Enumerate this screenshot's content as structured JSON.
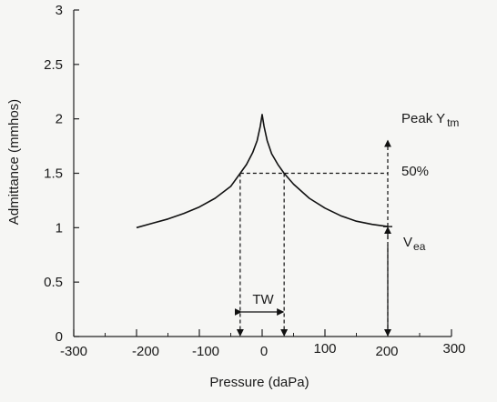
{
  "chart_data": {
    "type": "line",
    "title": "",
    "xlabel": "Pressure (daPa)",
    "ylabel": "Admittance (mmhos)",
    "xlim": [
      -300,
      200
    ],
    "ylim": [
      0,
      3
    ],
    "x_tick_labels": [
      {
        "value": -300,
        "label": "-300"
      },
      {
        "value": -200,
        "label": "-200"
      },
      {
        "value": -100,
        "label": "-100"
      },
      {
        "value": 0,
        "label": "0"
      },
      {
        "value": 100,
        "label": "100"
      },
      {
        "value": 200,
        "label": "200"
      },
      {
        "value": 300,
        "label": "300"
      }
    ],
    "y_ticks": [
      0,
      0.5,
      1,
      1.5,
      2,
      2.5,
      3
    ],
    "y_tick_labels": [
      "0",
      "0.5",
      "1",
      "1.5",
      "2",
      "2.5",
      "3"
    ],
    "grid": false,
    "series": [
      {
        "x": [
          -200,
          -175,
          -150,
          -125,
          -100,
          -75,
          -50,
          -35,
          -25,
          -15,
          -8,
          -3,
          0,
          3,
          8,
          15,
          25,
          35,
          50,
          75,
          100,
          125,
          150,
          175,
          200
        ],
        "y": [
          1.0,
          1.04,
          1.08,
          1.13,
          1.19,
          1.27,
          1.38,
          1.5,
          1.58,
          1.69,
          1.8,
          1.93,
          2.04,
          1.93,
          1.8,
          1.68,
          1.58,
          1.5,
          1.4,
          1.27,
          1.18,
          1.11,
          1.06,
          1.03,
          1.01
        ]
      }
    ],
    "annotations": {
      "peak_label": "Peak Y",
      "peak_subscript": "tm",
      "half_label": "50%",
      "vea_label": "V",
      "vea_subscript": "ea",
      "tw_label": "TW",
      "half_level": 1.5,
      "tw_x": [
        -35,
        35
      ],
      "marker_x": 200,
      "peak_arrow_top": 2.05,
      "vea_level": 1.01
    }
  }
}
